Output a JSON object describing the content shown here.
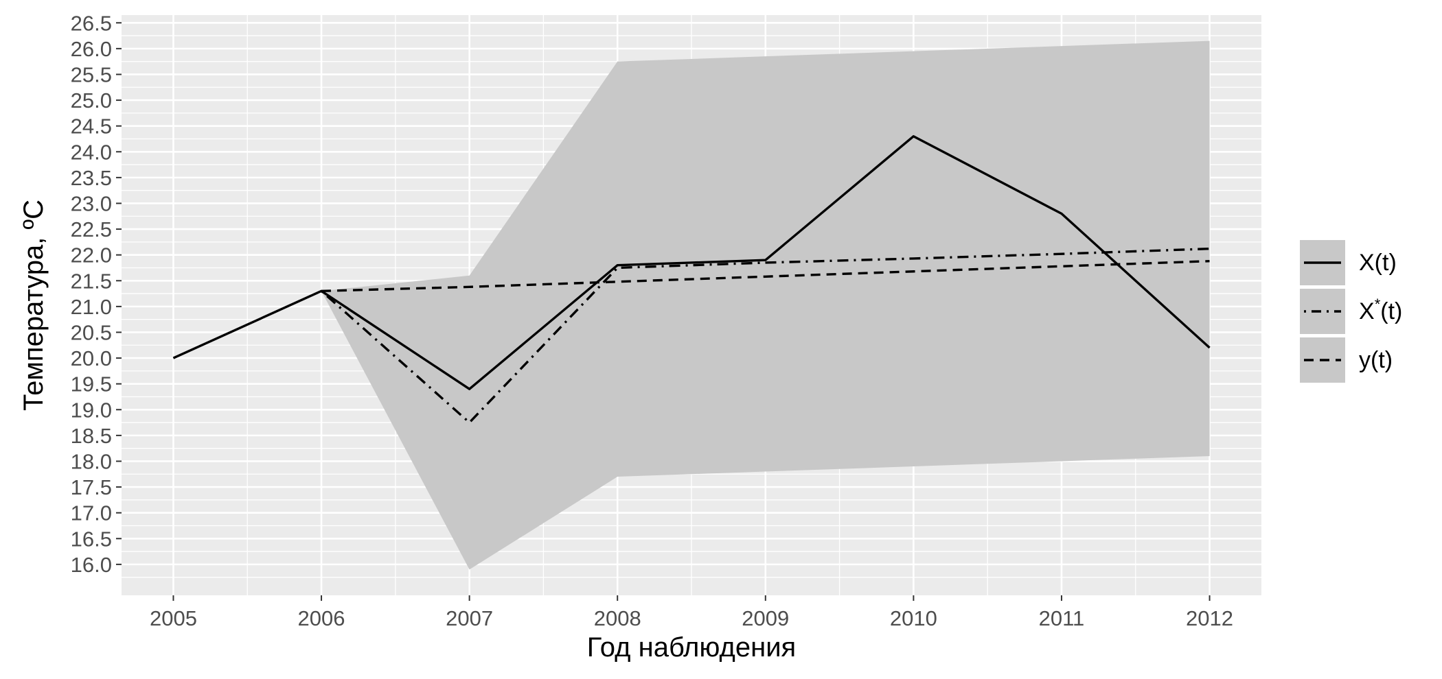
{
  "chart_data": {
    "type": "line",
    "xlabel": "Год наблюдения",
    "ylabel": "Температура, ºС",
    "x": [
      2005,
      2006,
      2007,
      2008,
      2009,
      2010,
      2011,
      2012
    ],
    "xlim": [
      2004.65,
      2012.35
    ],
    "ylim": [
      15.4,
      26.65
    ],
    "y_ticks": [
      16.0,
      16.5,
      17.0,
      17.5,
      18.0,
      18.5,
      19.0,
      19.5,
      20.0,
      20.5,
      21.0,
      21.5,
      22.0,
      22.5,
      23.0,
      23.5,
      24.0,
      24.5,
      25.0,
      25.5,
      26.0,
      26.5
    ],
    "y_tick_labels": [
      "16.0",
      "16.5",
      "17.0",
      "17.5",
      "18.0",
      "18.5",
      "19.0",
      "19.5",
      "20.0",
      "20.5",
      "21.0",
      "21.5",
      "22.0",
      "22.5",
      "23.0",
      "23.5",
      "24.0",
      "24.5",
      "25.0",
      "25.5",
      "26.0",
      "26.5"
    ],
    "x_tick_labels": [
      "2005",
      "2006",
      "2007",
      "2008",
      "2009",
      "2010",
      "2011",
      "2012"
    ],
    "grid": true,
    "legend_position": "right",
    "band": {
      "x": [
        2006,
        2007,
        2008,
        2009,
        2010,
        2011,
        2012
      ],
      "lower": [
        21.3,
        15.9,
        17.7,
        17.8,
        17.9,
        18.0,
        18.1
      ],
      "upper": [
        21.3,
        21.6,
        25.75,
        25.85,
        25.95,
        26.05,
        26.15
      ]
    },
    "series": [
      {
        "name": "X(t)",
        "line_style": "solid",
        "x": [
          2005,
          2006,
          2007,
          2008,
          2009,
          2010,
          2011,
          2012
        ],
        "values": [
          20.0,
          21.3,
          19.4,
          21.8,
          21.9,
          24.3,
          22.8,
          20.2
        ]
      },
      {
        "name": "X*(t)",
        "line_style": "dotdash",
        "x": [
          2006,
          2007,
          2008,
          2009,
          2010,
          2011,
          2012
        ],
        "values": [
          21.3,
          18.75,
          21.75,
          21.85,
          21.93,
          22.02,
          22.12
        ]
      },
      {
        "name": "y(t)",
        "line_style": "dashed",
        "x": [
          2006,
          2007,
          2008,
          2009,
          2010,
          2011,
          2012
        ],
        "values": [
          21.3,
          21.38,
          21.48,
          21.58,
          21.68,
          21.78,
          21.88
        ]
      }
    ],
    "colors": {
      "panel": "#ebebeb",
      "grid_major": "#ffffff",
      "band": "#c8c8c8",
      "line": "#000000",
      "tick_text": "#4d4d4d",
      "axis_title": "#000000"
    }
  }
}
